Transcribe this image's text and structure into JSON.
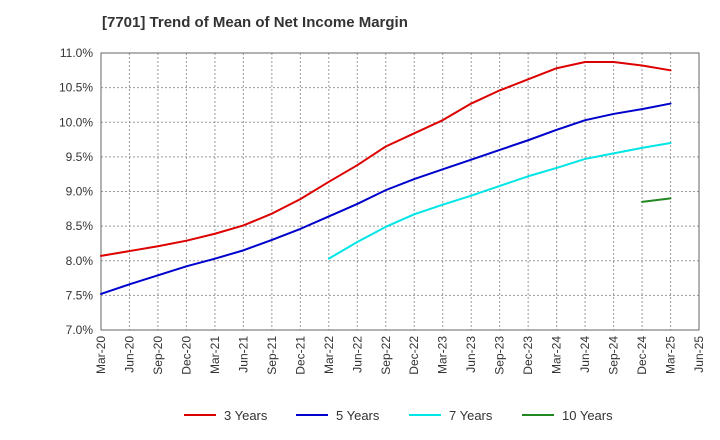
{
  "chart_data": {
    "type": "line",
    "title": "[7701]  Trend of Mean of Net Income Margin",
    "xlabel": "",
    "ylabel": "",
    "x_ticks": [
      "Mar-20",
      "Jun-20",
      "Sep-20",
      "Dec-20",
      "Mar-21",
      "Jun-21",
      "Sep-21",
      "Dec-21",
      "Mar-22",
      "Jun-22",
      "Sep-22",
      "Dec-22",
      "Mar-23",
      "Jun-23",
      "Sep-23",
      "Dec-23",
      "Mar-24",
      "Jun-24",
      "Sep-24",
      "Dec-24",
      "Mar-25",
      "Jun-25"
    ],
    "y_ticks": [
      "7.0%",
      "7.5%",
      "8.0%",
      "8.5%",
      "9.0%",
      "9.5%",
      "10.0%",
      "10.5%",
      "11.0%"
    ],
    "ylim": [
      7.0,
      11.0
    ],
    "grid": true,
    "legend_position": "bottom",
    "series": [
      {
        "name": "3 Years",
        "color": "#dd0000",
        "x": [
          "Mar-20",
          "Jun-20",
          "Sep-20",
          "Dec-20",
          "Mar-21",
          "Jun-21",
          "Sep-21",
          "Dec-21",
          "Mar-22",
          "Jun-22",
          "Sep-22",
          "Dec-22",
          "Mar-23",
          "Jun-23",
          "Sep-23",
          "Dec-23",
          "Mar-24",
          "Jun-24",
          "Sep-24",
          "Dec-24",
          "Mar-25"
        ],
        "values": [
          8.07,
          8.14,
          8.21,
          8.29,
          8.39,
          8.51,
          8.68,
          8.89,
          9.14,
          9.38,
          9.65,
          9.84,
          10.03,
          10.27,
          10.46,
          10.62,
          10.78,
          10.87,
          10.87,
          10.82,
          10.75
        ]
      },
      {
        "name": "5 Years",
        "color": "#0000cc",
        "x": [
          "Mar-20",
          "Jun-20",
          "Sep-20",
          "Dec-20",
          "Mar-21",
          "Jun-21",
          "Sep-21",
          "Dec-21",
          "Mar-22",
          "Jun-22",
          "Sep-22",
          "Dec-22",
          "Mar-23",
          "Jun-23",
          "Sep-23",
          "Dec-23",
          "Mar-24",
          "Jun-24",
          "Sep-24",
          "Dec-24",
          "Mar-25"
        ],
        "values": [
          7.52,
          7.66,
          7.79,
          7.92,
          8.03,
          8.15,
          8.3,
          8.46,
          8.64,
          8.82,
          9.02,
          9.18,
          9.32,
          9.46,
          9.6,
          9.74,
          9.89,
          10.03,
          10.12,
          10.19,
          10.27
        ]
      },
      {
        "name": "7 Years",
        "color": "#00e5e5",
        "x": [
          "Mar-22",
          "Jun-22",
          "Sep-22",
          "Dec-22",
          "Mar-23",
          "Jun-23",
          "Sep-23",
          "Dec-23",
          "Mar-24",
          "Jun-24",
          "Sep-24",
          "Dec-24",
          "Mar-25"
        ],
        "values": [
          8.03,
          8.27,
          8.49,
          8.67,
          8.81,
          8.94,
          9.08,
          9.22,
          9.34,
          9.47,
          9.55,
          9.63,
          9.7
        ]
      },
      {
        "name": "10 Years",
        "color": "#228822",
        "x": [
          "Dec-24",
          "Mar-25"
        ],
        "values": [
          8.85,
          8.9
        ]
      }
    ]
  }
}
